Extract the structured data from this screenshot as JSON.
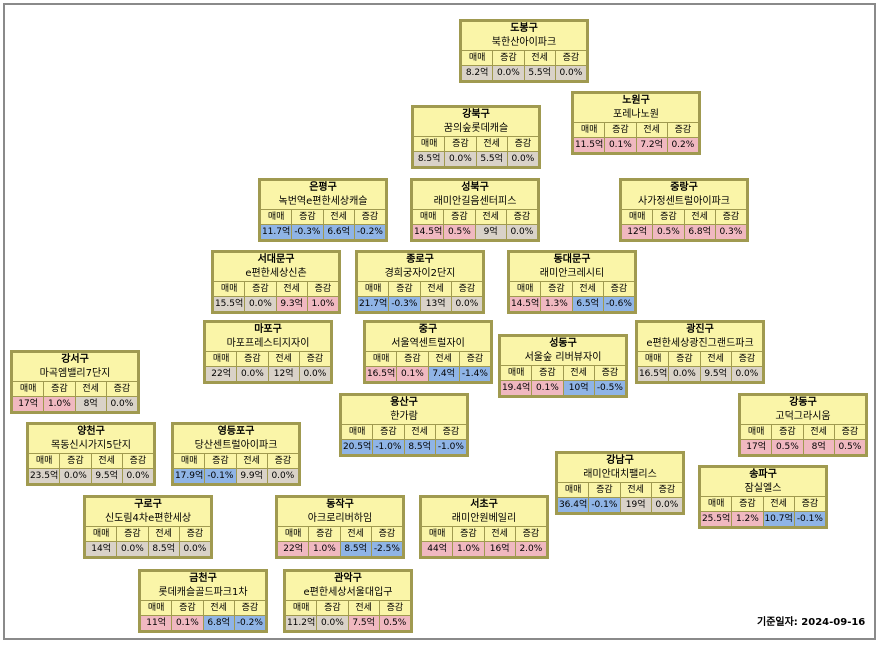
{
  "headers": [
    "매매",
    "증감",
    "전세",
    "증감"
  ],
  "baseline": {
    "label": "기준일자:",
    "date": "2024-09-16"
  },
  "colors": {
    "positive": "#f0b8c0",
    "negative": "#8fb4e6",
    "zero": "#d9d2c8",
    "card_bg": "#faf5a8",
    "card_border": "#a09a50"
  },
  "cards": [
    {
      "district": "도봉구",
      "apt": "북한산아이파크",
      "sale": "8.2억",
      "sale_chg": "0.0%",
      "rent": "5.5억",
      "rent_chg": "0.0%",
      "sale_chg_sign": "zero",
      "rent_chg_sign": "zero",
      "sale_sign": "zero",
      "rent_sign": "zero"
    },
    {
      "district": "강북구",
      "apt": "꿈의숲롯데캐슬",
      "sale": "8.5억",
      "sale_chg": "0.0%",
      "rent": "5.5억",
      "rent_chg": "0.0%",
      "sale_chg_sign": "zero",
      "rent_chg_sign": "zero",
      "sale_sign": "zero",
      "rent_sign": "zero"
    },
    {
      "district": "노원구",
      "apt": "포레나노원",
      "sale": "11.5억",
      "sale_chg": "0.1%",
      "rent": "7.2억",
      "rent_chg": "0.2%",
      "sale_chg_sign": "pos",
      "rent_chg_sign": "pos",
      "sale_sign": "pos",
      "rent_sign": "pos"
    },
    {
      "district": "은평구",
      "apt": "녹번역e편한세상캐슬",
      "sale": "11.7억",
      "sale_chg": "-0.3%",
      "rent": "6.6억",
      "rent_chg": "-0.2%",
      "sale_chg_sign": "neg",
      "rent_chg_sign": "neg",
      "sale_sign": "neg",
      "rent_sign": "neg"
    },
    {
      "district": "성북구",
      "apt": "래미안길음센터피스",
      "sale": "14.5억",
      "sale_chg": "0.5%",
      "rent": "9억",
      "rent_chg": "0.0%",
      "sale_chg_sign": "pos",
      "rent_chg_sign": "zero",
      "sale_sign": "pos",
      "rent_sign": "zero"
    },
    {
      "district": "중랑구",
      "apt": "사가정센트럴아이파크",
      "sale": "12억",
      "sale_chg": "0.5%",
      "rent": "6.8억",
      "rent_chg": "0.3%",
      "sale_chg_sign": "pos",
      "rent_chg_sign": "pos",
      "sale_sign": "pos",
      "rent_sign": "pos"
    },
    {
      "district": "서대문구",
      "apt": "e편한세상신촌",
      "sale": "15.5억",
      "sale_chg": "0.0%",
      "rent": "9.3억",
      "rent_chg": "1.0%",
      "sale_chg_sign": "zero",
      "rent_chg_sign": "pos",
      "sale_sign": "zero",
      "rent_sign": "pos"
    },
    {
      "district": "종로구",
      "apt": "경희궁자이2단지",
      "sale": "21.7억",
      "sale_chg": "-0.3%",
      "rent": "13억",
      "rent_chg": "0.0%",
      "sale_chg_sign": "neg",
      "rent_chg_sign": "zero",
      "sale_sign": "neg",
      "rent_sign": "zero"
    },
    {
      "district": "동대문구",
      "apt": "래미안크레시티",
      "sale": "14.5억",
      "sale_chg": "1.3%",
      "rent": "6.5억",
      "rent_chg": "-0.6%",
      "sale_chg_sign": "pos",
      "rent_chg_sign": "neg",
      "sale_sign": "pos",
      "rent_sign": "neg"
    },
    {
      "district": "마포구",
      "apt": "마포프레스티지자이",
      "sale": "22억",
      "sale_chg": "0.0%",
      "rent": "12억",
      "rent_chg": "0.0%",
      "sale_chg_sign": "zero",
      "rent_chg_sign": "zero",
      "sale_sign": "zero",
      "rent_sign": "zero"
    },
    {
      "district": "중구",
      "apt": "서울역센트럴자이",
      "sale": "16.5억",
      "sale_chg": "0.1%",
      "rent": "7.4억",
      "rent_chg": "-1.4%",
      "sale_chg_sign": "pos",
      "rent_chg_sign": "neg",
      "sale_sign": "pos",
      "rent_sign": "neg"
    },
    {
      "district": "성동구",
      "apt": "서울숲 리버뷰자이",
      "sale": "19.4억",
      "sale_chg": "0.1%",
      "rent": "10억",
      "rent_chg": "-0.5%",
      "sale_chg_sign": "pos",
      "rent_chg_sign": "neg",
      "sale_sign": "pos",
      "rent_sign": "neg"
    },
    {
      "district": "광진구",
      "apt": "e편한세상광진그랜드파크",
      "sale": "16.5억",
      "sale_chg": "0.0%",
      "rent": "9.5억",
      "rent_chg": "0.0%",
      "sale_chg_sign": "zero",
      "rent_chg_sign": "zero",
      "sale_sign": "zero",
      "rent_sign": "zero"
    },
    {
      "district": "강서구",
      "apt": "마곡엠밸리7단지",
      "sale": "17억",
      "sale_chg": "1.0%",
      "rent": "8억",
      "rent_chg": "0.0%",
      "sale_chg_sign": "pos",
      "rent_chg_sign": "zero",
      "sale_sign": "pos",
      "rent_sign": "zero"
    },
    {
      "district": "용산구",
      "apt": "한가람",
      "sale": "20.5억",
      "sale_chg": "-1.0%",
      "rent": "8.5억",
      "rent_chg": "-1.0%",
      "sale_chg_sign": "neg",
      "rent_chg_sign": "neg",
      "sale_sign": "neg",
      "rent_sign": "neg"
    },
    {
      "district": "강동구",
      "apt": "고덕그라시움",
      "sale": "17억",
      "sale_chg": "0.5%",
      "rent": "8억",
      "rent_chg": "0.5%",
      "sale_chg_sign": "pos",
      "rent_chg_sign": "pos",
      "sale_sign": "pos",
      "rent_sign": "pos"
    },
    {
      "district": "양천구",
      "apt": "목동신시가지5단지",
      "sale": "23.5억",
      "sale_chg": "0.0%",
      "rent": "9.5억",
      "rent_chg": "0.0%",
      "sale_chg_sign": "zero",
      "rent_chg_sign": "zero",
      "sale_sign": "zero",
      "rent_sign": "zero"
    },
    {
      "district": "영등포구",
      "apt": "당산센트럴아이파크",
      "sale": "17.9억",
      "sale_chg": "-0.1%",
      "rent": "9.9억",
      "rent_chg": "0.0%",
      "sale_chg_sign": "neg",
      "rent_chg_sign": "zero",
      "sale_sign": "neg",
      "rent_sign": "zero"
    },
    {
      "district": "강남구",
      "apt": "래미안대치팰리스",
      "sale": "36.4억",
      "sale_chg": "-0.1%",
      "rent": "19억",
      "rent_chg": "0.0%",
      "sale_chg_sign": "neg",
      "rent_chg_sign": "zero",
      "sale_sign": "neg",
      "rent_sign": "zero"
    },
    {
      "district": "송파구",
      "apt": "잠실엘스",
      "sale": "25.5억",
      "sale_chg": "1.2%",
      "rent": "10.7억",
      "rent_chg": "-0.1%",
      "sale_chg_sign": "pos",
      "rent_chg_sign": "neg",
      "sale_sign": "pos",
      "rent_sign": "neg"
    },
    {
      "district": "구로구",
      "apt": "신도림4차e편한세상",
      "sale": "14억",
      "sale_chg": "0.0%",
      "rent": "8.5억",
      "rent_chg": "0.0%",
      "sale_chg_sign": "zero",
      "rent_chg_sign": "zero",
      "sale_sign": "zero",
      "rent_sign": "zero"
    },
    {
      "district": "동작구",
      "apt": "아크로리버하임",
      "sale": "22억",
      "sale_chg": "1.0%",
      "rent": "8.5억",
      "rent_chg": "-2.5%",
      "sale_chg_sign": "pos",
      "rent_chg_sign": "neg",
      "sale_sign": "pos",
      "rent_sign": "neg"
    },
    {
      "district": "서초구",
      "apt": "래미안원베일리",
      "sale": "44억",
      "sale_chg": "1.0%",
      "rent": "16억",
      "rent_chg": "2.0%",
      "sale_chg_sign": "pos",
      "rent_chg_sign": "pos",
      "sale_sign": "pos",
      "rent_sign": "pos"
    },
    {
      "district": "금천구",
      "apt": "롯데캐슬골드파크1차",
      "sale": "11억",
      "sale_chg": "0.1%",
      "rent": "6.8억",
      "rent_chg": "-0.2%",
      "sale_chg_sign": "pos",
      "rent_chg_sign": "neg",
      "sale_sign": "pos",
      "rent_sign": "neg"
    },
    {
      "district": "관악구",
      "apt": "e편한세상서울대입구",
      "sale": "11.2억",
      "sale_chg": "0.0%",
      "rent": "7.5억",
      "rent_chg": "0.5%",
      "sale_chg_sign": "zero",
      "rent_chg_sign": "pos",
      "sale_sign": "zero",
      "rent_sign": "pos"
    }
  ]
}
